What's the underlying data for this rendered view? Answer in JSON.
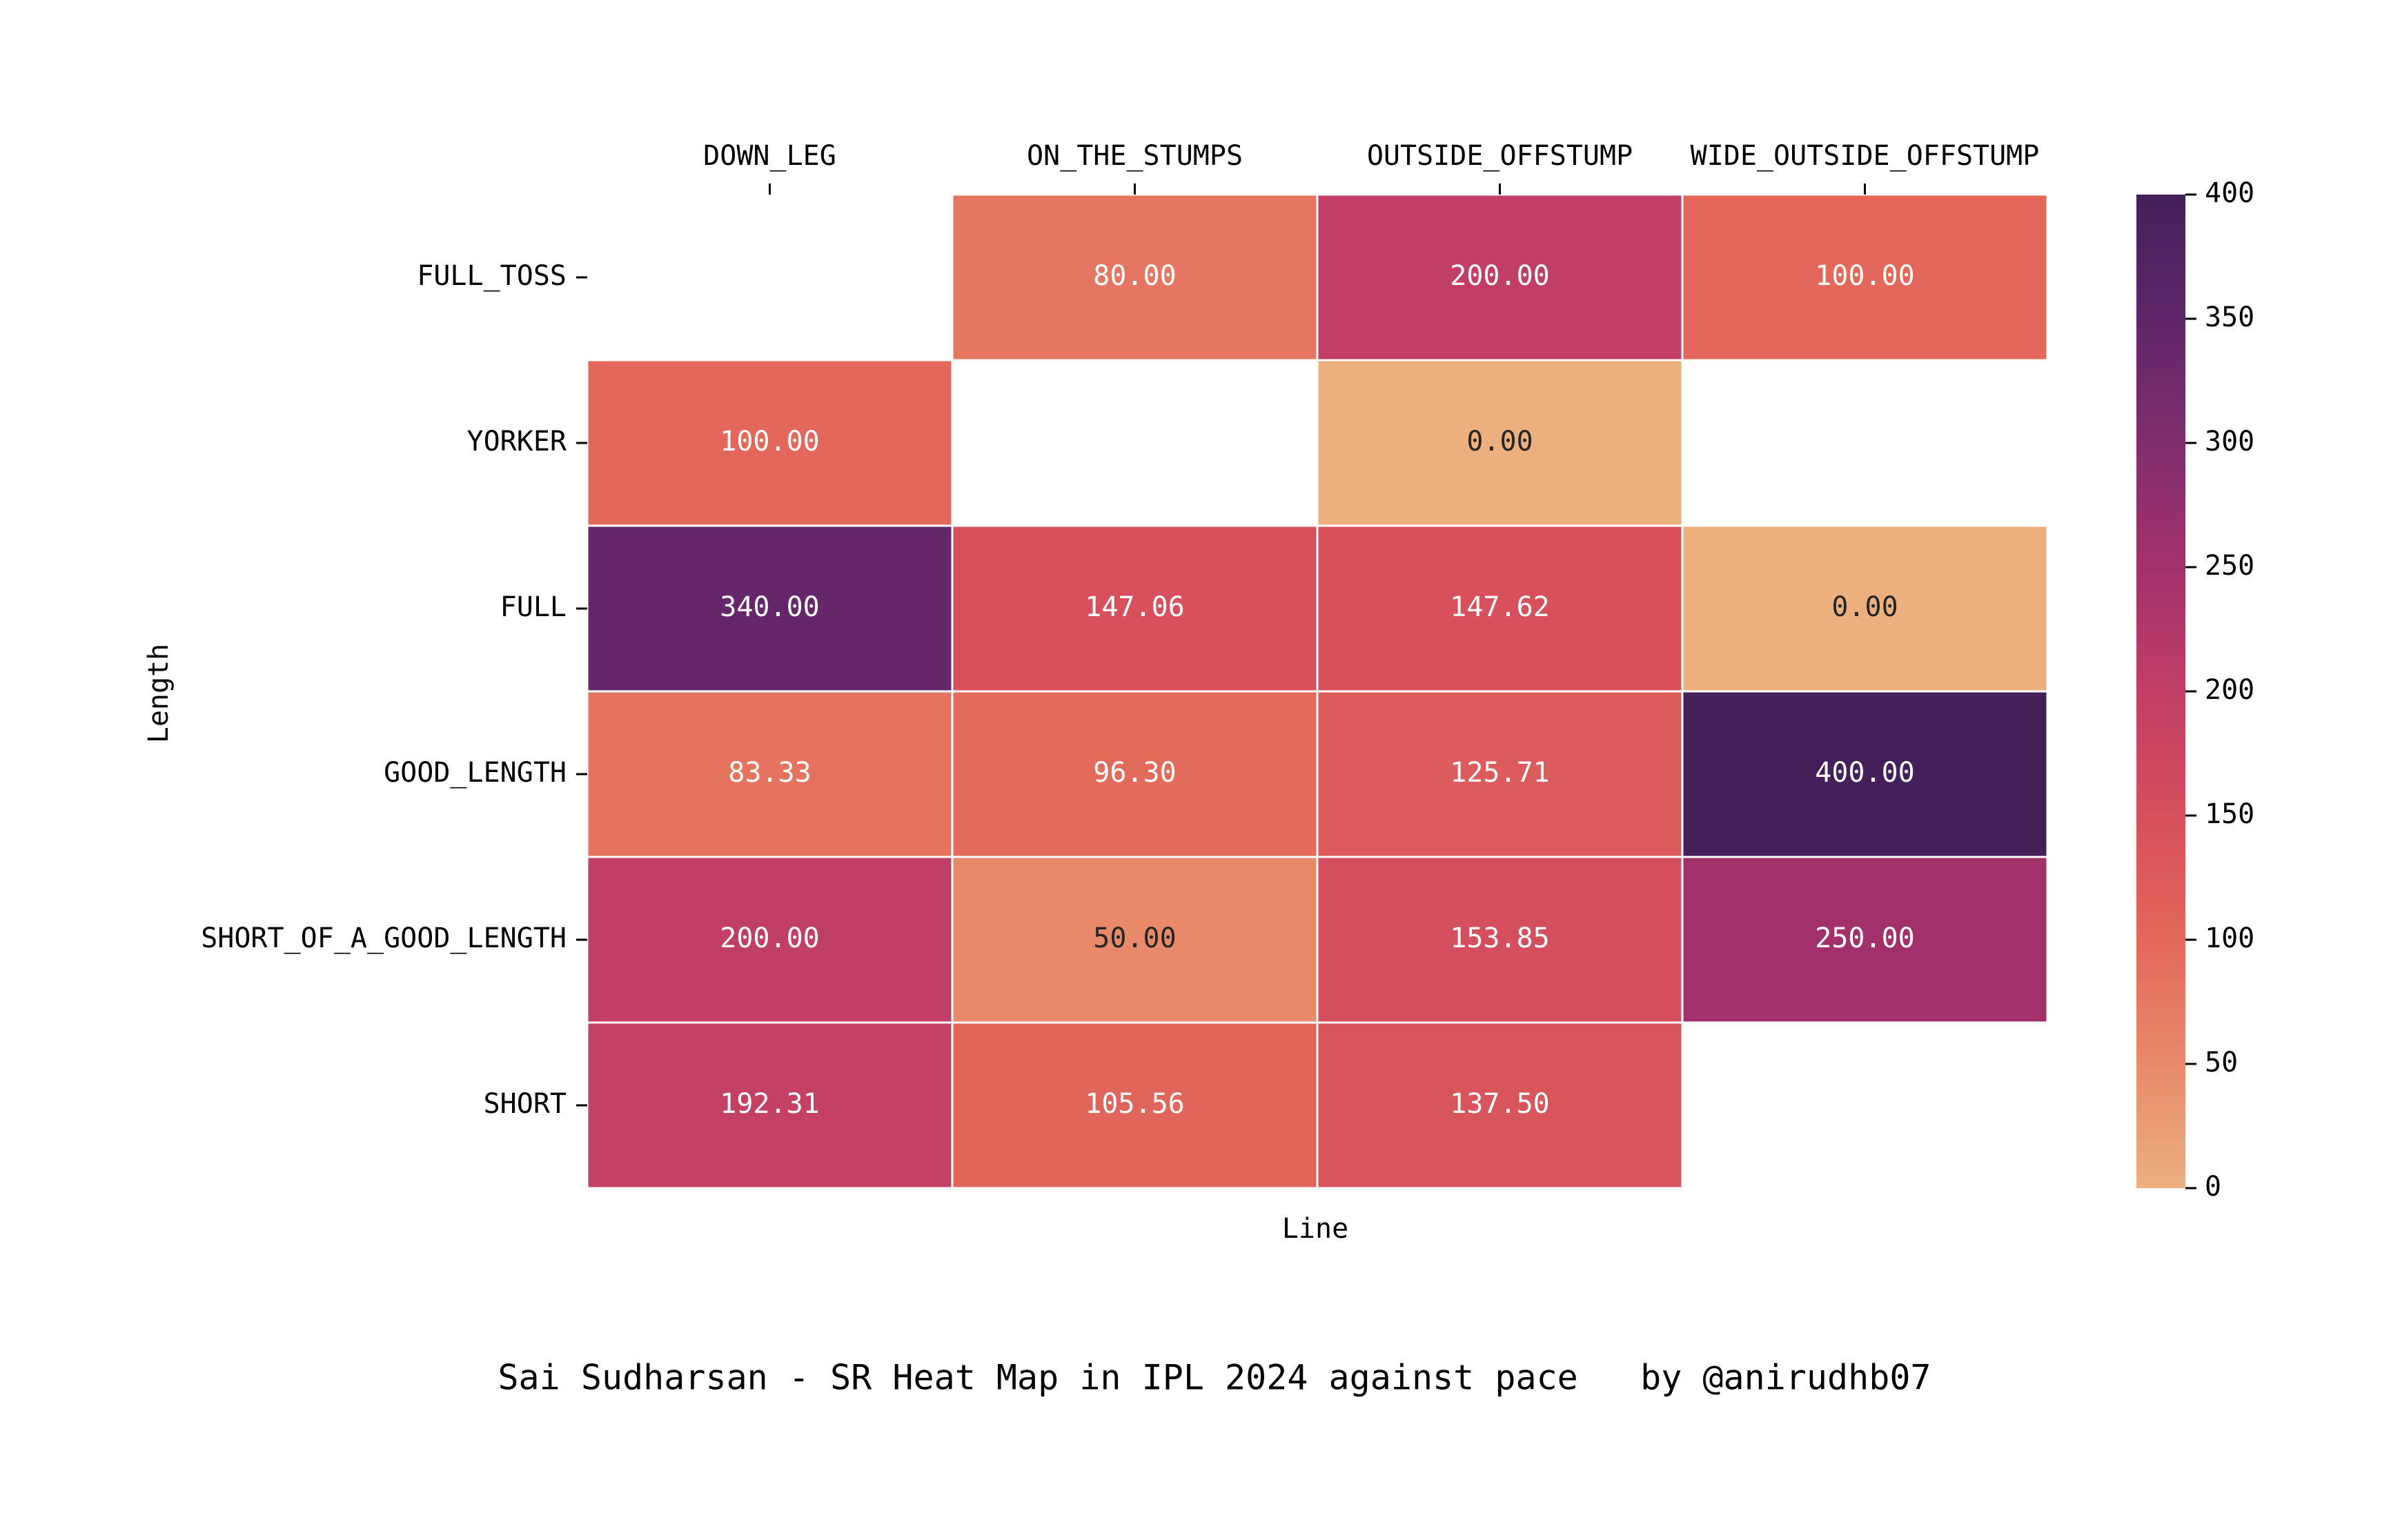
{
  "chart_data": {
    "type": "heatmap",
    "title": "Sai Sudharsan - SR Heat Map in IPL 2024 against pace   by @anirudhb07",
    "xlabel": "Line",
    "ylabel": "Length",
    "x_categories": [
      "DOWN_LEG",
      "ON_THE_STUMPS",
      "OUTSIDE_OFFSTUMP",
      "WIDE_OUTSIDE_OFFSTUMP"
    ],
    "y_categories": [
      "FULL_TOSS",
      "YORKER",
      "FULL",
      "GOOD_LENGTH",
      "SHORT_OF_A_GOOD_LENGTH",
      "SHORT"
    ],
    "values": [
      [
        null,
        80.0,
        200.0,
        100.0
      ],
      [
        100.0,
        null,
        0.0,
        null
      ],
      [
        340.0,
        147.06,
        147.62,
        0.0
      ],
      [
        83.33,
        96.3,
        125.71,
        400.0
      ],
      [
        200.0,
        50.0,
        153.85,
        250.0
      ],
      [
        192.31,
        105.56,
        137.5,
        null
      ]
    ],
    "value_format": "2 decimals",
    "colorbar": {
      "range": [
        0,
        400
      ],
      "ticks": [
        "0",
        "50",
        "100",
        "150",
        "200",
        "250",
        "300",
        "350",
        "400"
      ],
      "colormap": "flare",
      "stops": [
        "#ecb07f",
        "#e88a6a",
        "#e3685b",
        "#d64f5c",
        "#c13e66",
        "#a2316b",
        "#812d6e",
        "#5e2668",
        "#44205a"
      ]
    },
    "x_axis_position": "top",
    "grid": false,
    "cell_border_color": "#ffffff"
  }
}
